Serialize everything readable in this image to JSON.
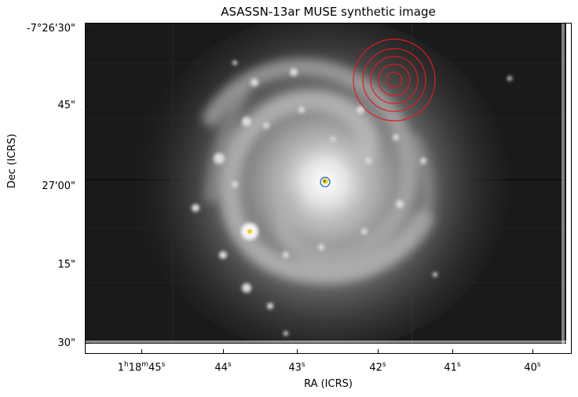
{
  "figure": {
    "title": "ASASSN-13ar MUSE synthetic image",
    "xlabel": "RA (ICRS)",
    "ylabel": "Dec (ICRS)",
    "y_ticks": [
      "-7°26'30\"",
      "45\"",
      "27'00\"",
      "15\"",
      "30\""
    ],
    "x_ticks": [
      {
        "main": "1",
        "h": "h",
        "m_val": "18",
        "m": "m",
        "s_val": "45",
        "s": "s"
      },
      {
        "main": "44",
        "s": "s"
      },
      {
        "main": "43",
        "s": "s"
      },
      {
        "main": "42",
        "s": "s"
      },
      {
        "main": "41",
        "s": "s"
      },
      {
        "main": "40",
        "s": "s"
      }
    ]
  },
  "image": {
    "colormap": "grayscale",
    "annotations": [
      {
        "type": "circle-set",
        "color": "#e31a1c",
        "count": 5,
        "label": "aperture rings"
      },
      {
        "type": "marker",
        "color": "#f2d200",
        "ring_color": "#3b6fd6",
        "label": "nucleus marker"
      },
      {
        "type": "marker",
        "color": "#f2d200",
        "label": "transient marker"
      }
    ]
  }
}
